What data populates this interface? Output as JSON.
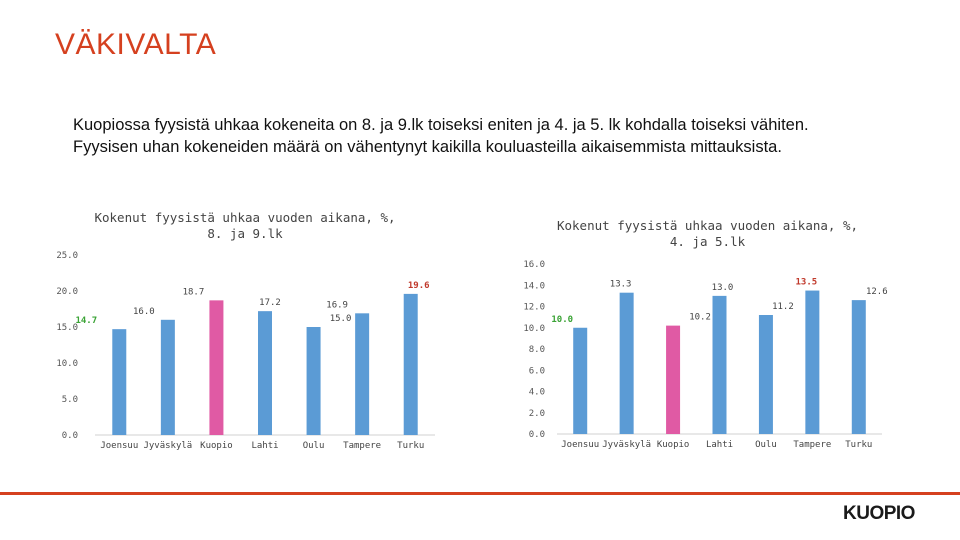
{
  "page": {
    "title": "VÄKIVALTA",
    "summary_line1": "Kuopiossa fyysistä uhkaa kokeneita on 8. ja 9.lk toiseksi eniten ja 4. ja 5. lk kohdalla toiseksi vähiten.",
    "summary_line2": "Fyysisen uhan kokeneiden määrä on vähentynyt kaikilla kouluasteilla aikaisemmista mittauksista.",
    "logo": "KUOPIO"
  },
  "colors": {
    "bar": "#5b9bd5",
    "highlight": "#e05aa4",
    "accent": "#d5401f",
    "min_label": "#3aa335",
    "max_label": "#c0392b"
  },
  "chart_data": [
    {
      "type": "bar",
      "title_line1": "Kokenut fyysistä uhkaa vuoden aikana, %,",
      "title_line2": "8. ja 9.lk",
      "categories": [
        "Joensuu",
        "Jyväskylä",
        "Kuopio",
        "Lahti",
        "Oulu",
        "Tampere",
        "Turku"
      ],
      "values": [
        14.7,
        16.0,
        18.7,
        17.2,
        15.0,
        16.9,
        19.6
      ],
      "value_labels": [
        "14.7",
        "16.0",
        "18.7",
        "17.2",
        "15.0",
        "16.9",
        "19.6"
      ],
      "highlight_index": 2,
      "min_index": 0,
      "max_index": 6,
      "ylim": [
        0,
        25
      ],
      "yticks": [
        0,
        5,
        10,
        15,
        20,
        25
      ],
      "ytick_labels": [
        "0.0",
        "5.0",
        "10.0",
        "15.0",
        "20.0",
        "25.0"
      ],
      "grid": false
    },
    {
      "type": "bar",
      "title_line1": "Kokenut fyysistä uhkaa vuoden aikana, %,",
      "title_line2": "4. ja 5.lk",
      "categories": [
        "Joensuu",
        "Jyväskylä",
        "Kuopio",
        "Lahti",
        "Oulu",
        "Tampere",
        "Turku"
      ],
      "values": [
        10.0,
        13.3,
        10.2,
        13.0,
        11.2,
        13.5,
        12.6
      ],
      "value_labels": [
        "10.0",
        "13.3",
        "10.2",
        "13.0",
        "11.2",
        "13.5",
        "12.6"
      ],
      "highlight_index": 2,
      "min_index": 0,
      "max_index": 5,
      "ylim": [
        0,
        16
      ],
      "yticks": [
        0,
        2,
        4,
        6,
        8,
        10,
        12,
        14,
        16
      ],
      "ytick_labels": [
        "0.0",
        "2.0",
        "4.0",
        "6.0",
        "8.0",
        "10.0",
        "12.0",
        "14.0",
        "16.0"
      ],
      "grid": false
    }
  ]
}
